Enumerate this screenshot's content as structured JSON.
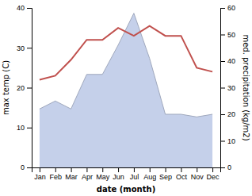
{
  "chart_data": {
    "type": "line",
    "categories": [
      "Jan",
      "Feb",
      "Mar",
      "Apr",
      "May",
      "Jun",
      "Jul",
      "Aug",
      "Sep",
      "Oct",
      "Nov",
      "Dec"
    ],
    "series": [
      {
        "type": "area",
        "axis": "y2",
        "color": "#c5d0ea",
        "values": [
          22,
          25,
          22,
          35,
          35,
          46,
          58,
          41,
          20,
          20,
          19,
          20
        ]
      },
      {
        "type": "line",
        "color": "#c0504d",
        "values": [
          22,
          23,
          27,
          32,
          32,
          35,
          33,
          35.5,
          33,
          33,
          25,
          24
        ]
      }
    ],
    "x_label": "date (month)",
    "y_label": "max temp (C)",
    "y2_label": "med. precipitation (kg/m2)",
    "ylim": [
      0,
      40
    ],
    "yticks": [
      0,
      10,
      20,
      30,
      40
    ],
    "y2lim": [
      0,
      60
    ],
    "y2ticks": [
      0,
      10,
      20,
      30,
      40,
      50,
      60
    ],
    "grid": false
  }
}
